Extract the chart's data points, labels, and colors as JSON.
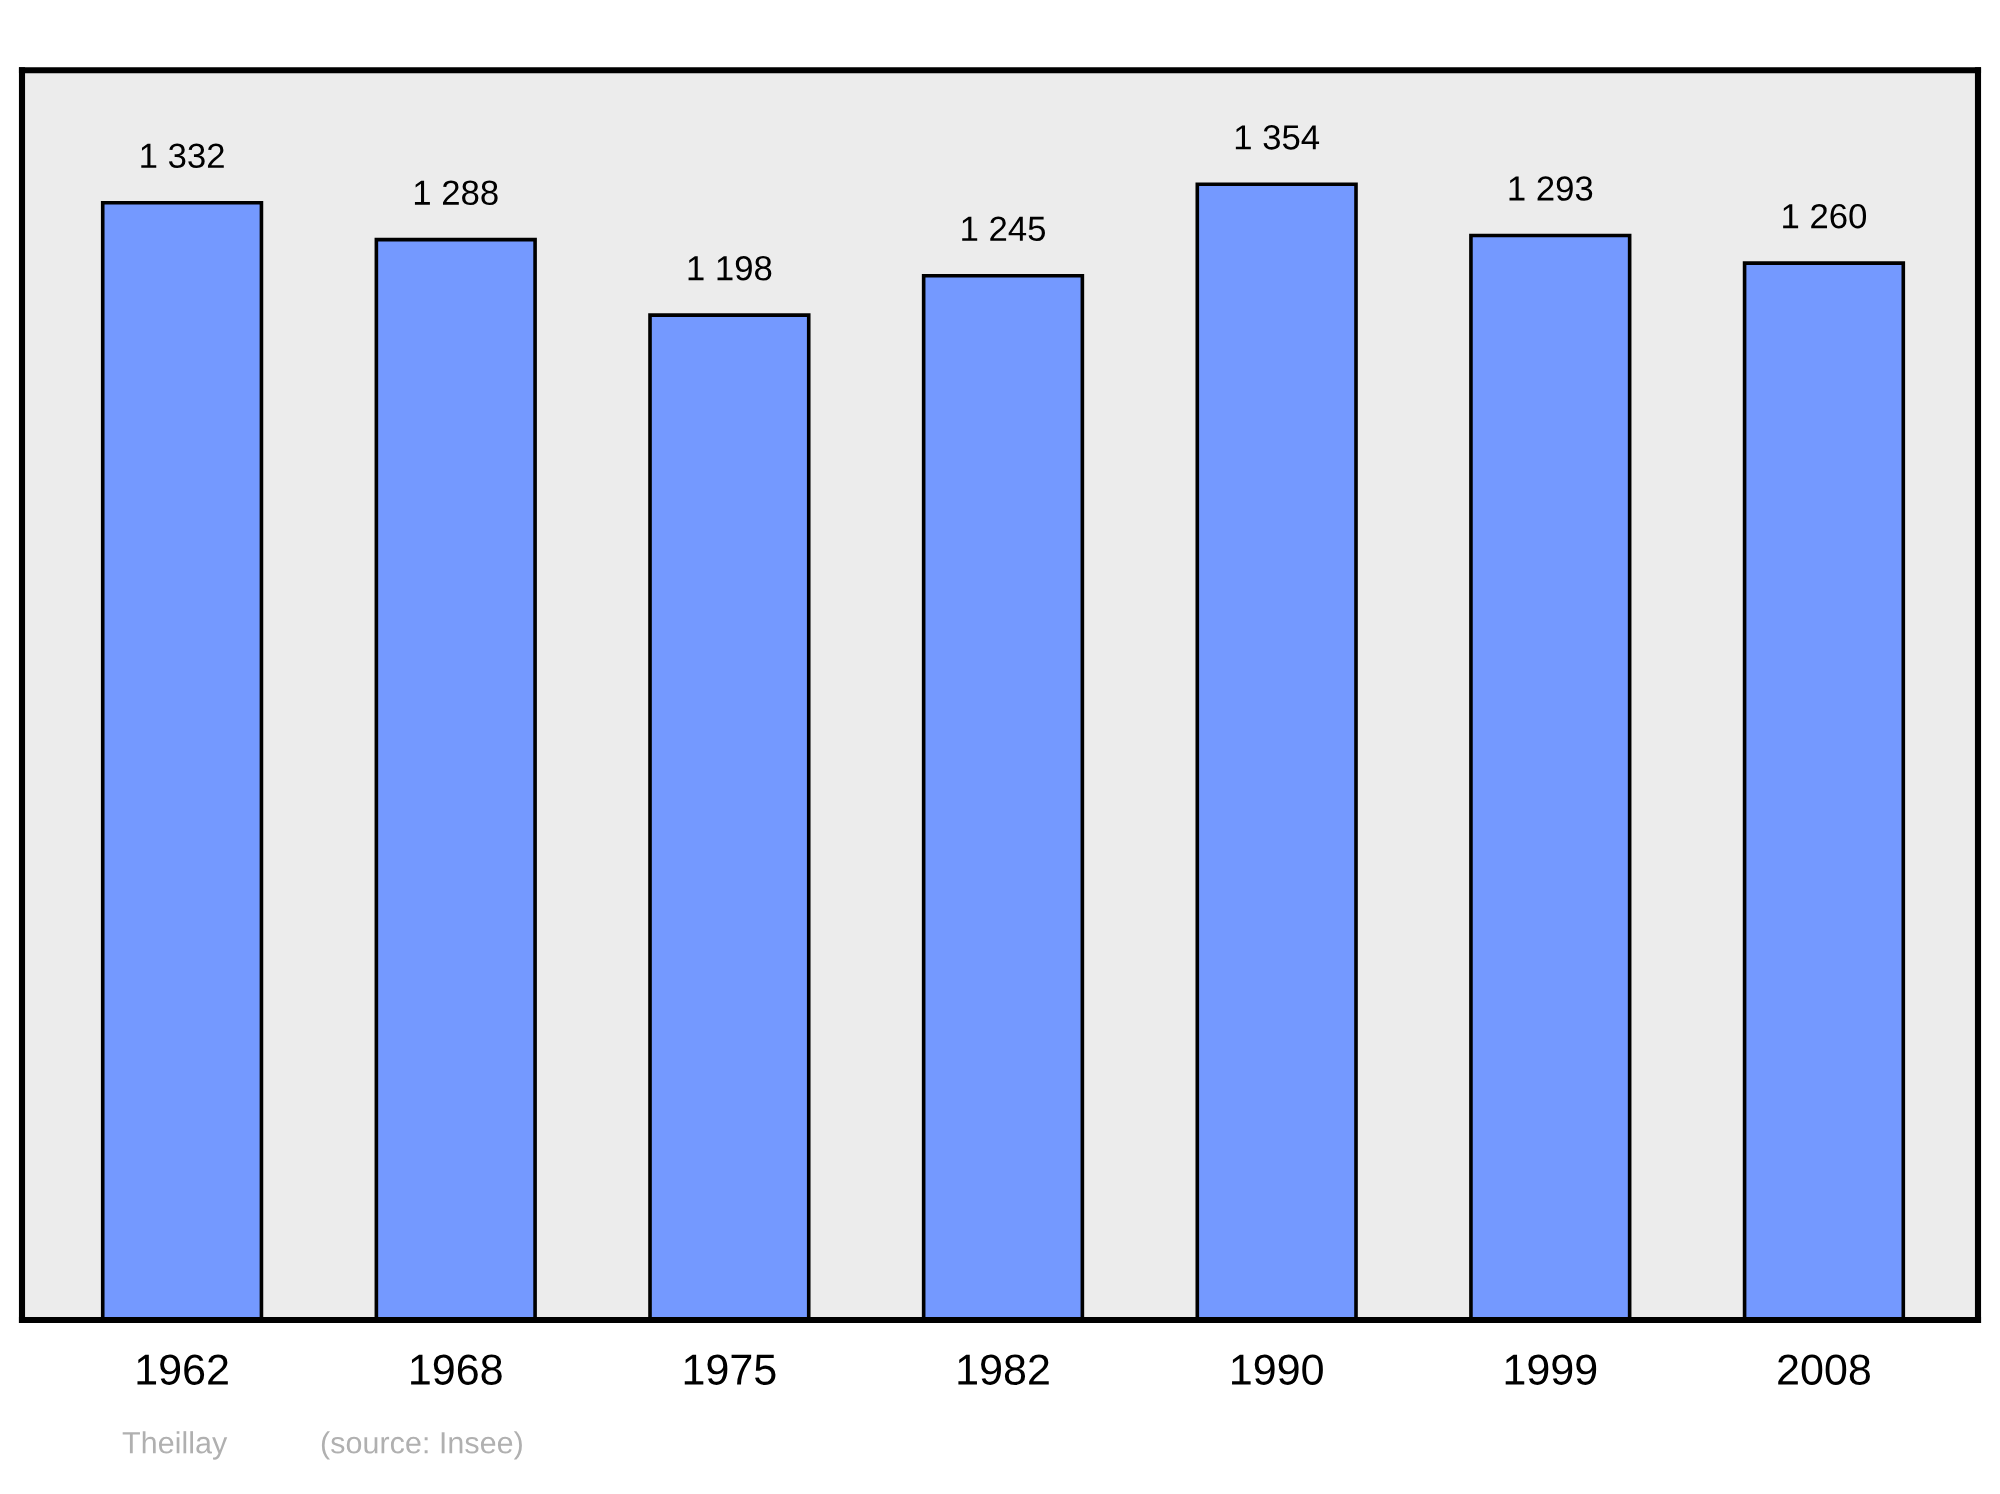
{
  "chart_data": {
    "type": "bar",
    "categories": [
      "1962",
      "1968",
      "1975",
      "1982",
      "1990",
      "1999",
      "2008"
    ],
    "values": [
      1332,
      1288,
      1198,
      1245,
      1354,
      1293,
      1260
    ],
    "value_labels": [
      "1 332",
      "1 288",
      "1 198",
      "1 245",
      "1 354",
      "1 293",
      "1 260"
    ],
    "color": "#7499ff",
    "relative": false,
    "ylim": [
      0,
      1490
    ],
    "grid": false,
    "legend": false,
    "annotations": [
      "Theillay",
      "(source: Insee)"
    ]
  }
}
